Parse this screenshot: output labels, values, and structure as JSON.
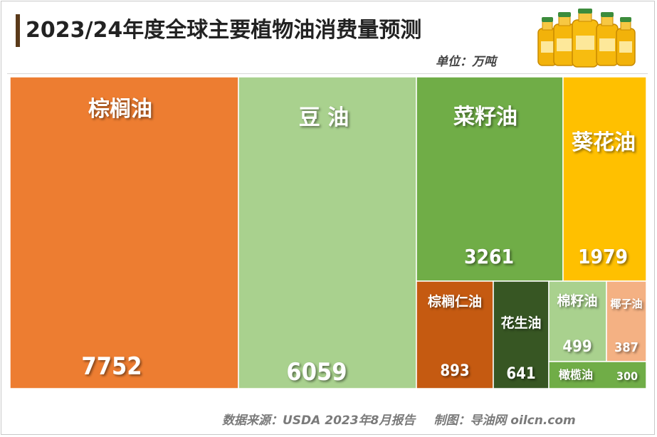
{
  "header": {
    "title": "2023/24年度全球主要植物油消费量预测",
    "unit": "单位：万吨"
  },
  "footer": {
    "source": "数据来源：USDA 2023年8月报告",
    "credit": "制图：导油网 oilcn.com"
  },
  "chart_data": {
    "type": "treemap",
    "title": "2023/24年度全球主要植物油消费量预测",
    "unit": "万吨",
    "items": [
      {
        "name": "棕榈油",
        "value": 7752,
        "label": "7752",
        "color": "#ED7D31"
      },
      {
        "name": "豆 油",
        "value": 6059,
        "label": "6059",
        "color": "#A9D18E"
      },
      {
        "name": "菜籽油",
        "value": 3261,
        "label": "3261",
        "color": "#70AD47"
      },
      {
        "name": "葵花油",
        "value": 1979,
        "label": "1979",
        "color": "#FFC000"
      },
      {
        "name": "棕榈仁油",
        "value": 893,
        "label": "893",
        "color": "#C55A11"
      },
      {
        "name": "花生油",
        "value": 641,
        "label": "641",
        "color": "#375623"
      },
      {
        "name": "棉籽油",
        "value": 499,
        "label": "499",
        "color": "#A9D18E"
      },
      {
        "name": "椰子油",
        "value": 387,
        "label": "387",
        "color": "#F4B183"
      },
      {
        "name": "橄榄油",
        "value": 300,
        "label": "300",
        "color": "#70AD47"
      }
    ]
  }
}
